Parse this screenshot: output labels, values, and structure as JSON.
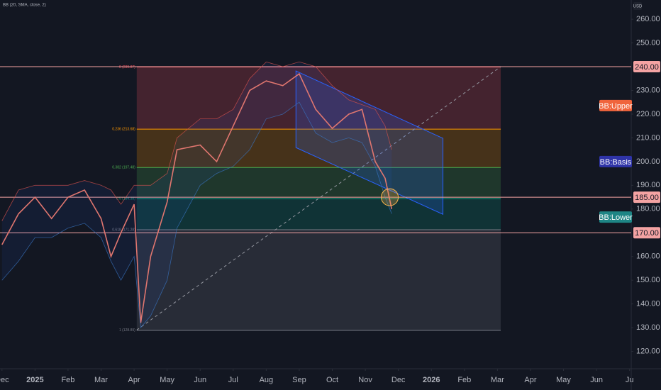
{
  "chart_data": {
    "type": "line",
    "legend_text": "BB (20, SMA, close, 2)",
    "currency": "USD",
    "x": [
      0,
      0.5,
      1,
      1.5,
      2,
      2.5,
      3,
      3.3,
      3.6,
      4,
      4.2,
      4.5,
      5,
      5.3,
      6,
      6.5,
      7,
      7.5,
      8,
      8.5,
      9,
      9.5,
      10,
      10.5,
      10.9,
      11.3,
      11.6,
      11.8
    ],
    "series": [
      {
        "name": "Close",
        "color": "#e0766f",
        "values": [
          165,
          178,
          185,
          176,
          185,
          188,
          176,
          160,
          170,
          182,
          132,
          160,
          183,
          205,
          207,
          200,
          215,
          230,
          234,
          232,
          237,
          222,
          214,
          220,
          222,
          200,
          193,
          180
        ]
      },
      {
        "name": "BB Upper",
        "color": "#e0544f",
        "values": [
          175,
          188,
          190,
          190,
          190,
          192,
          190,
          188,
          182,
          190,
          190,
          190,
          195,
          210,
          218,
          218,
          222,
          235,
          242,
          240,
          242,
          240,
          232,
          226,
          224,
          222,
          215,
          205
        ]
      },
      {
        "name": "BB Lower",
        "color": "#3a78c8",
        "values": [
          150,
          158,
          168,
          168,
          172,
          174,
          168,
          158,
          150,
          160,
          130,
          135,
          150,
          172,
          190,
          195,
          198,
          205,
          218,
          220,
          225,
          212,
          208,
          210,
          208,
          198,
          185,
          178
        ]
      }
    ],
    "xlim": [
      -0.06,
      19.05
    ],
    "xticks": [
      {
        "value": 0,
        "label": "Dec"
      },
      {
        "value": 1,
        "label": "2025"
      },
      {
        "value": 2,
        "label": "Feb"
      },
      {
        "value": 3,
        "label": "Mar"
      },
      {
        "value": 4,
        "label": "Apr"
      },
      {
        "value": 5,
        "label": "May"
      },
      {
        "value": 6,
        "label": "Jun"
      },
      {
        "value": 7,
        "label": "Jul"
      },
      {
        "value": 8,
        "label": "Aug"
      },
      {
        "value": 9,
        "label": "Sep"
      },
      {
        "value": 10,
        "label": "Oct"
      },
      {
        "value": 11,
        "label": "Nov"
      },
      {
        "value": 12,
        "label": "Dec"
      },
      {
        "value": 13,
        "label": "2026"
      },
      {
        "value": 14,
        "label": "Feb"
      },
      {
        "value": 15,
        "label": "Mar"
      },
      {
        "value": 16,
        "label": "Apr"
      },
      {
        "value": 17,
        "label": "May"
      },
      {
        "value": 18,
        "label": "Jun"
      },
      {
        "value": 19,
        "label": "Ju"
      }
    ],
    "ylim": [
      112.7,
      268.1
    ],
    "yticks": [
      {
        "value": 120,
        "label": "120.00"
      },
      {
        "value": 130,
        "label": "130.00"
      },
      {
        "value": 140,
        "label": "140.00"
      },
      {
        "value": 150,
        "label": "150.00"
      },
      {
        "value": 160,
        "label": "160.00"
      },
      {
        "value": 180,
        "label": "180.00"
      },
      {
        "value": 190,
        "label": "190.00"
      },
      {
        "value": 200,
        "label": "200.00"
      },
      {
        "value": 210,
        "label": "210.00"
      },
      {
        "value": 220,
        "label": "220.00"
      },
      {
        "value": 230,
        "label": "230.00"
      },
      {
        "value": 250,
        "label": "250.00"
      },
      {
        "value": 260,
        "label": "260.00"
      }
    ],
    "h_lines": [
      {
        "value": 240,
        "label": "240.00",
        "color": "#f4a3a3"
      },
      {
        "value": 185,
        "label": "185.00",
        "color": "#f4a3a3"
      },
      {
        "value": 170,
        "label": "170.00",
        "color": "#f4a3a3"
      }
    ],
    "bb_tags": [
      {
        "value": 223.6,
        "label": "BB:Upper",
        "color": "#f0643c"
      },
      {
        "value": 200,
        "label": "BB:Basis",
        "color": "#2f34a8"
      },
      {
        "value": 176.6,
        "label": "BB:Lower",
        "color": "#1e8585"
      }
    ],
    "fib": {
      "xlim": [
        4.08,
        15.1
      ],
      "levels": [
        {
          "value": 239.87,
          "label": "0 (239.87)",
          "color": "#f7525f"
        },
        {
          "value": 213.68,
          "label": "0.236 (213.68)",
          "color": "#ff9800"
        },
        {
          "value": 197.48,
          "label": "0.382 (197.48)",
          "color": "#4caf50"
        },
        {
          "value": 184.38,
          "label": "0.5 (184.38)",
          "color": "#089981"
        },
        {
          "value": 171.28,
          "label": "0.618 (171.28)",
          "color": "#787b86"
        },
        {
          "value": 128.89,
          "label": "1 (128.89)",
          "color": "#787b86"
        }
      ]
    },
    "channel": {
      "x": [
        8.9,
        13.35
      ],
      "top": [
        238.2,
        209.8
      ],
      "bottom": [
        205.9,
        177.8
      ],
      "color": "#2962ff"
    },
    "trend_line": {
      "x": [
        4.08,
        15.1
      ],
      "y": [
        129,
        240
      ]
    },
    "marker": {
      "x": 11.74,
      "y": 185
    }
  }
}
